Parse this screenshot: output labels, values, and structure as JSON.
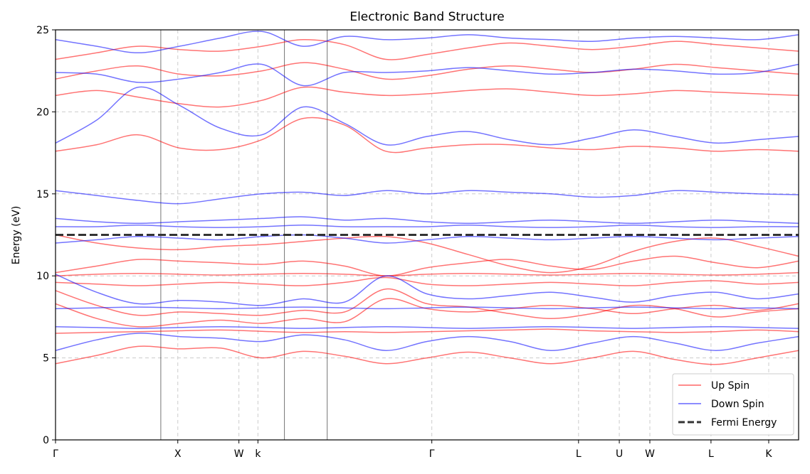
{
  "chart_data": {
    "type": "line",
    "title": "Electronic Band Structure",
    "xlabel": "",
    "ylabel": "Energy (eV)",
    "ylim": [
      0,
      25
    ],
    "xlim": [
      0,
      10.94
    ],
    "yticks": [
      0,
      5,
      10,
      15,
      20,
      25
    ],
    "kpoints": [
      {
        "label": "Γ",
        "x": 0.0
      },
      {
        "label": "X",
        "x": 1.8
      },
      {
        "label": "W",
        "x": 2.7
      },
      {
        "label": "k",
        "x": 2.98
      },
      {
        "label": "Γ",
        "x": 5.54
      },
      {
        "label": "L",
        "x": 7.7
      },
      {
        "label": "U",
        "x": 8.3
      },
      {
        "label": "W",
        "x": 8.75
      },
      {
        "label": "L",
        "x": 9.65
      },
      {
        "label": "K",
        "x": 10.5
      }
    ],
    "vertical_lines_x": [
      1.55,
      3.37,
      4.0
    ],
    "fermi_energy": 12.5,
    "grid": true,
    "legend": {
      "position": "lower right",
      "entries": [
        {
          "label": "Up Spin",
          "color": "#ff0000",
          "style": "solid"
        },
        {
          "label": "Down Spin",
          "color": "#0000ff",
          "style": "solid"
        },
        {
          "label": "Fermi Energy",
          "color": "#333333",
          "style": "dashed"
        }
      ]
    },
    "series": [
      {
        "name": "Up Spin",
        "color": "#ff0000",
        "values": [
          4.65,
          5.15,
          5.7,
          5.55,
          5.6,
          5.0,
          5.4,
          5.1,
          4.65,
          5.0,
          5.35,
          5.0,
          4.65,
          5.0,
          5.4,
          4.9,
          4.6,
          5.0,
          5.45
        ]
      },
      {
        "name": "Up Spin",
        "color": "#ff0000",
        "values": [
          6.5,
          6.55,
          6.6,
          6.65,
          6.7,
          6.62,
          6.55,
          6.6,
          6.55,
          6.6,
          6.65,
          6.7,
          6.75,
          6.65,
          6.6,
          6.55,
          6.6,
          6.7,
          6.6
        ]
      },
      {
        "name": "Up Spin",
        "color": "#ff0000",
        "values": [
          8.3,
          7.4,
          6.9,
          7.1,
          7.3,
          7.1,
          7.4,
          7.2,
          8.6,
          8.0,
          7.8,
          8.0,
          8.2,
          8.0,
          7.7,
          8.0,
          8.2,
          7.9,
          8.3
        ]
      },
      {
        "name": "Up Spin",
        "color": "#ff0000",
        "values": [
          9.1,
          8.2,
          7.6,
          7.8,
          7.7,
          7.6,
          7.9,
          7.8,
          9.2,
          8.3,
          8.1,
          7.7,
          7.4,
          7.7,
          8.2,
          8.0,
          7.5,
          7.8,
          8.0
        ]
      },
      {
        "name": "Up Spin",
        "color": "#ff0000",
        "values": [
          9.6,
          9.5,
          9.4,
          9.5,
          9.6,
          9.5,
          9.4,
          9.6,
          9.9,
          9.5,
          9.4,
          9.5,
          9.6,
          9.5,
          9.4,
          9.6,
          9.7,
          9.5,
          9.6
        ]
      },
      {
        "name": "Up Spin",
        "color": "#ff0000",
        "values": [
          10.0,
          10.1,
          10.15,
          10.1,
          10.05,
          10.1,
          10.15,
          10.1,
          10.0,
          10.1,
          10.15,
          10.1,
          10.05,
          10.1,
          10.15,
          10.1,
          10.05,
          10.1,
          10.2
        ]
      },
      {
        "name": "Up Spin",
        "color": "#ff0000",
        "values": [
          10.2,
          10.6,
          11.0,
          10.9,
          10.8,
          10.7,
          10.9,
          10.6,
          10.0,
          10.5,
          10.8,
          11.0,
          10.6,
          10.4,
          10.9,
          11.2,
          10.8,
          10.5,
          10.9
        ]
      },
      {
        "name": "Up Spin",
        "color": "#ff0000",
        "values": [
          12.5,
          12.0,
          11.7,
          11.6,
          11.8,
          11.9,
          12.1,
          12.3,
          12.4,
          12.0,
          11.3,
          10.6,
          10.2,
          10.6,
          11.5,
          12.1,
          12.3,
          11.8,
          11.2
        ]
      },
      {
        "name": "Up Spin",
        "color": "#ff0000",
        "values": [
          17.6,
          18.0,
          18.6,
          17.8,
          17.7,
          18.3,
          19.6,
          19.2,
          17.6,
          17.8,
          18.0,
          18.0,
          17.8,
          17.7,
          17.9,
          17.8,
          17.6,
          17.7,
          17.6
        ]
      },
      {
        "name": "Up Spin",
        "color": "#ff0000",
        "values": [
          21.0,
          21.3,
          20.9,
          20.5,
          20.3,
          20.7,
          21.5,
          21.2,
          21.0,
          21.1,
          21.3,
          21.4,
          21.2,
          21.0,
          21.1,
          21.3,
          21.2,
          21.1,
          21.0
        ]
      },
      {
        "name": "Up Spin",
        "color": "#ff0000",
        "values": [
          22.0,
          22.5,
          22.8,
          22.3,
          22.2,
          22.5,
          23.0,
          22.6,
          22.0,
          22.2,
          22.6,
          22.8,
          22.6,
          22.4,
          22.6,
          22.9,
          22.7,
          22.5,
          22.3
        ]
      },
      {
        "name": "Up Spin",
        "color": "#ff0000",
        "values": [
          23.2,
          23.6,
          24.0,
          23.8,
          23.7,
          24.0,
          24.4,
          24.1,
          23.2,
          23.5,
          23.9,
          24.2,
          24.0,
          23.8,
          24.0,
          24.3,
          24.1,
          23.9,
          23.7
        ]
      },
      {
        "name": "Down Spin",
        "color": "#0000ff",
        "values": [
          5.45,
          6.1,
          6.5,
          6.3,
          6.2,
          6.0,
          6.4,
          6.1,
          5.45,
          6.0,
          6.3,
          6.0,
          5.45,
          5.9,
          6.3,
          5.9,
          5.45,
          5.9,
          6.3
        ]
      },
      {
        "name": "Down Spin",
        "color": "#0000ff",
        "values": [
          6.9,
          6.85,
          6.8,
          6.85,
          6.9,
          6.85,
          6.8,
          6.85,
          6.9,
          6.85,
          6.8,
          6.85,
          6.9,
          6.85,
          6.8,
          6.85,
          6.9,
          6.85,
          6.8
        ]
      },
      {
        "name": "Down Spin",
        "color": "#0000ff",
        "values": [
          8.0,
          8.05,
          8.1,
          8.05,
          8.0,
          8.05,
          8.1,
          8.05,
          8.0,
          8.05,
          8.1,
          8.05,
          8.0,
          8.05,
          8.1,
          8.05,
          8.0,
          8.05,
          8.0
        ]
      },
      {
        "name": "Down Spin",
        "color": "#0000ff",
        "values": [
          10.1,
          9.0,
          8.3,
          8.5,
          8.4,
          8.2,
          8.6,
          8.4,
          10.0,
          8.9,
          8.6,
          8.8,
          9.0,
          8.7,
          8.4,
          8.8,
          9.0,
          8.6,
          8.9
        ]
      },
      {
        "name": "Down Spin",
        "color": "#0000ff",
        "values": [
          12.0,
          12.2,
          12.4,
          12.3,
          12.2,
          12.4,
          12.5,
          12.3,
          12.0,
          12.2,
          12.4,
          12.3,
          12.2,
          12.3,
          12.4,
          12.3,
          12.2,
          12.3,
          12.4
        ]
      },
      {
        "name": "Down Spin",
        "color": "#0000ff",
        "values": [
          13.0,
          13.0,
          13.1,
          13.0,
          12.95,
          13.0,
          13.1,
          13.0,
          13.0,
          13.0,
          13.1,
          13.0,
          12.95,
          13.0,
          13.1,
          13.0,
          12.95,
          13.0,
          13.0
        ]
      },
      {
        "name": "Down Spin",
        "color": "#0000ff",
        "values": [
          13.5,
          13.3,
          13.2,
          13.3,
          13.4,
          13.5,
          13.6,
          13.4,
          13.5,
          13.3,
          13.2,
          13.3,
          13.4,
          13.3,
          13.2,
          13.3,
          13.4,
          13.3,
          13.2
        ]
      },
      {
        "name": "Down Spin",
        "color": "#0000ff",
        "values": [
          15.2,
          14.9,
          14.6,
          14.4,
          14.7,
          15.0,
          15.1,
          14.9,
          15.2,
          15.0,
          15.2,
          15.1,
          15.0,
          14.8,
          14.9,
          15.2,
          15.1,
          15.0,
          14.95
        ]
      },
      {
        "name": "Down Spin",
        "color": "#0000ff",
        "values": [
          18.1,
          19.5,
          21.5,
          20.4,
          19.0,
          18.6,
          20.3,
          19.3,
          18.0,
          18.5,
          18.8,
          18.3,
          18.0,
          18.4,
          18.9,
          18.5,
          18.1,
          18.3,
          18.5
        ]
      },
      {
        "name": "Down Spin",
        "color": "#0000ff",
        "values": [
          22.4,
          22.3,
          21.8,
          22.0,
          22.4,
          22.9,
          21.6,
          22.4,
          22.4,
          22.5,
          22.7,
          22.5,
          22.3,
          22.4,
          22.6,
          22.5,
          22.3,
          22.4,
          22.9
        ]
      },
      {
        "name": "Down Spin",
        "color": "#0000ff",
        "values": [
          24.4,
          24.0,
          23.6,
          24.0,
          24.5,
          24.9,
          24.0,
          24.6,
          24.4,
          24.5,
          24.7,
          24.5,
          24.4,
          24.3,
          24.5,
          24.6,
          24.5,
          24.4,
          24.7
        ]
      }
    ]
  }
}
